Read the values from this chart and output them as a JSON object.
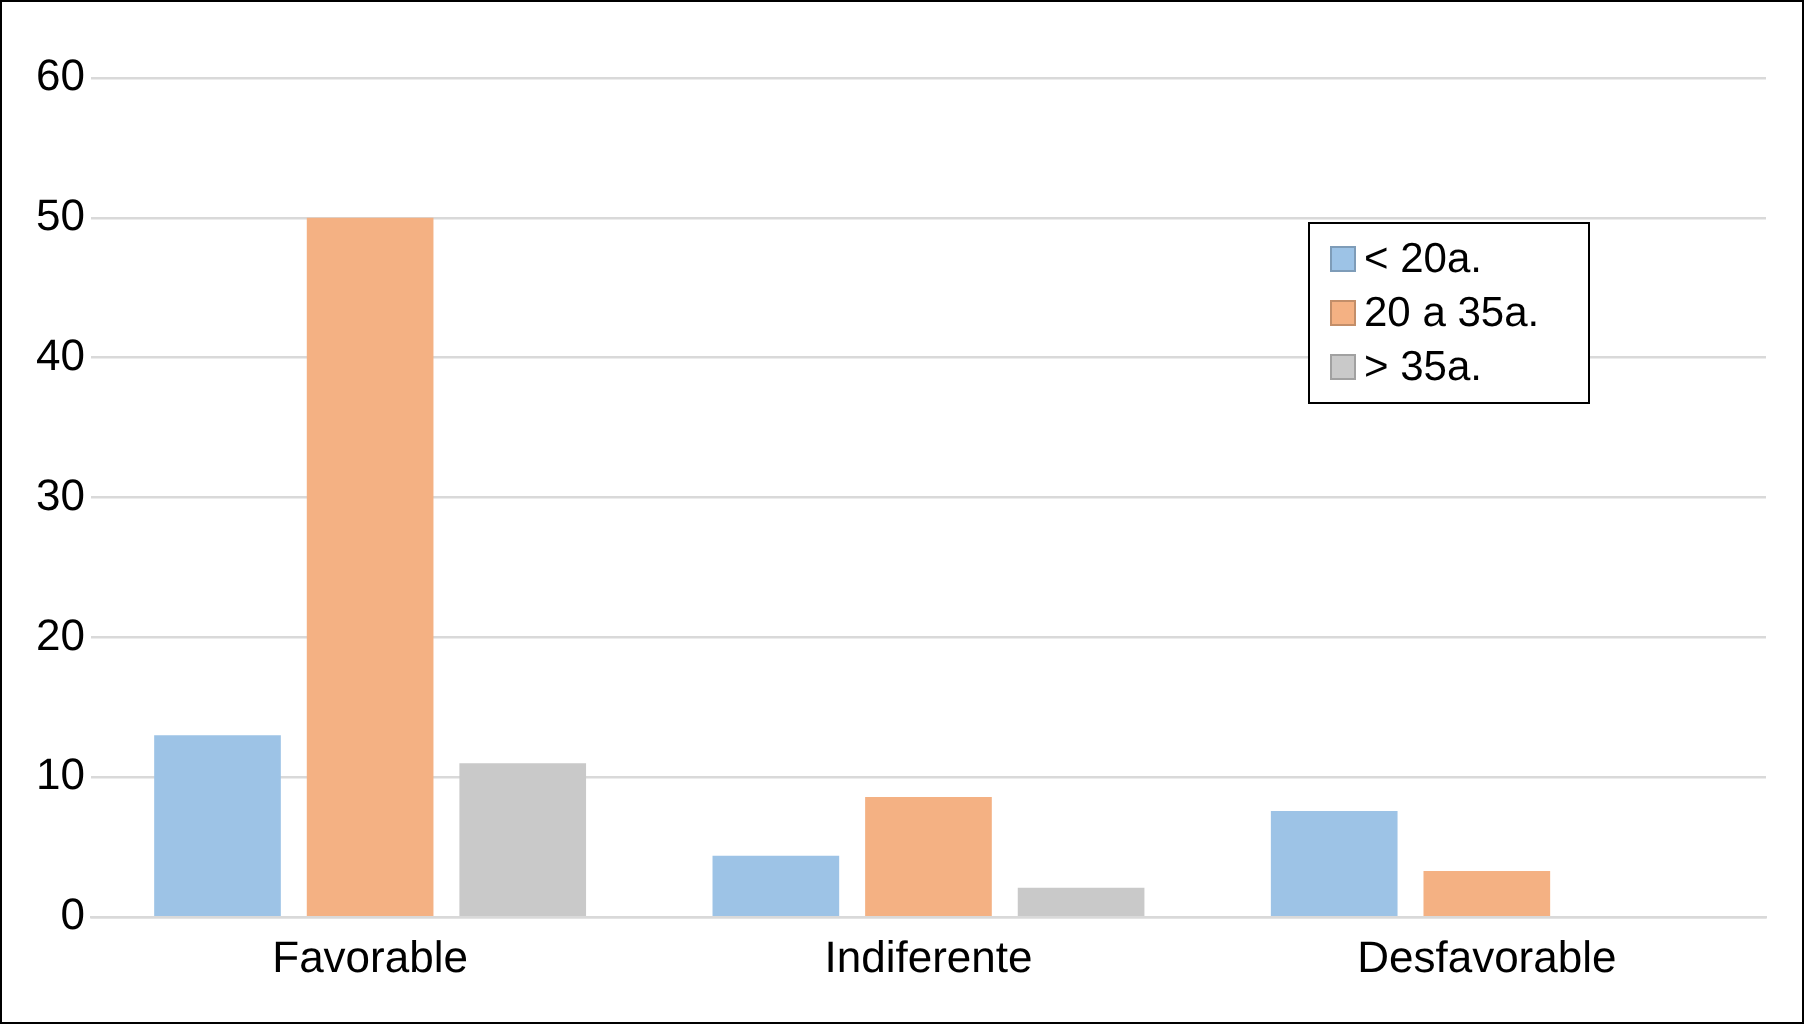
{
  "chart_data": {
    "type": "bar",
    "categories": [
      "Favorable",
      "Indiferente",
      "Desfavorable"
    ],
    "series": [
      {
        "name": "< 20a.",
        "color": "#9dc3e6",
        "values": [
          13,
          4.4,
          7.6
        ]
      },
      {
        "name": "20 a 35a.",
        "color": "#f4b183",
        "values": [
          50,
          8.6,
          3.3
        ]
      },
      {
        "name": "> 35a.",
        "color": "#c9c9c9",
        "values": [
          11,
          2.1,
          0
        ]
      }
    ],
    "ylim": [
      0,
      60
    ],
    "yticks": [
      0,
      10,
      20,
      30,
      40,
      50,
      60
    ],
    "grid": "y",
    "legend": "top right"
  }
}
